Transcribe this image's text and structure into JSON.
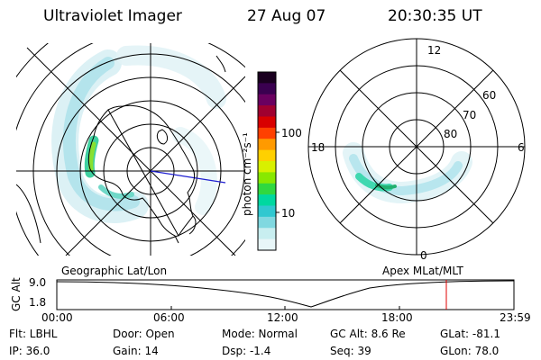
{
  "header": {
    "title": "Ultraviolet Imager",
    "date": "27 Aug 07",
    "time": "20:30:35 UT"
  },
  "left_panel": {
    "caption": "Geographic Lat/Lon"
  },
  "right_panel": {
    "caption": "Apex MLat/MLT",
    "mlt_labels": {
      "top": "12",
      "bottom": "0",
      "left": "18",
      "right": "6"
    },
    "lat_labels": [
      "60",
      "70",
      "80"
    ]
  },
  "colorbar": {
    "unit_label": "photon cm⁻²s⁻¹",
    "ticks": [
      "100",
      "10"
    ],
    "colors_top_to_bottom": [
      "#1a0020",
      "#3a0050",
      "#6a0060",
      "#a00030",
      "#d80000",
      "#ff4000",
      "#ff9a00",
      "#ffd000",
      "#d8f000",
      "#88e800",
      "#30d840",
      "#00d8a0",
      "#30c8d0",
      "#80d8e0",
      "#c8eef0",
      "#e8f6f8"
    ]
  },
  "altitude_strip": {
    "ylabel": "GC Alt",
    "ytick_top": "9.0",
    "ytick_bottom": "1.8",
    "xticks": [
      "00:00",
      "06:00",
      "12:00",
      "18:00",
      "23:59"
    ],
    "marker_color": "#e00000",
    "line_color": "#000000"
  },
  "footer": {
    "filter": "Flt: LBHL",
    "ip": "IP: 36.0",
    "door": "Door: Open",
    "gain": "Gain: 14",
    "mode": "Mode: Normal",
    "dsp": "Dsp:    -1.4",
    "gc_alt": "GC Alt: 8.6 Re",
    "seq": "Seq: 39",
    "glat": "GLat: -81.1",
    "glon": "GLon:  78.0"
  },
  "colors": {
    "aurora_low": "#a8e0e8",
    "aurora_mid": "#40d8b0",
    "aurora_high": "#80e030",
    "meridian": "#2020d0"
  }
}
